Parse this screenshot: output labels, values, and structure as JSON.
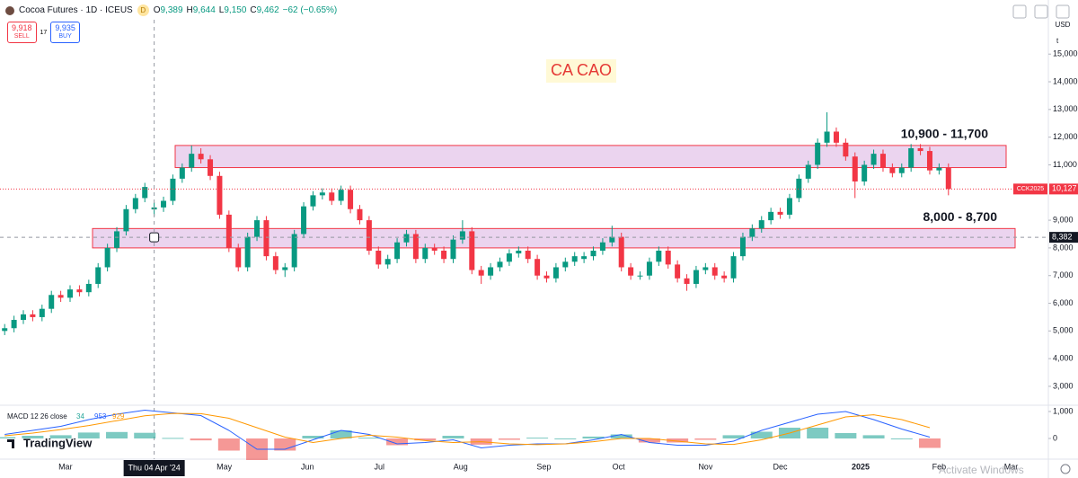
{
  "header": {
    "symbol": "Cocoa Futures · 1D · ICEUS",
    "badge": "D",
    "ohlc": [
      {
        "key": "O",
        "value": "9,389"
      },
      {
        "key": "H",
        "value": "9,644"
      },
      {
        "key": "L",
        "value": "9,150"
      },
      {
        "key": "C",
        "value": "9,462"
      }
    ],
    "change": "−62 (−0.65%)",
    "sell": {
      "price": "9,918",
      "label": "SELL"
    },
    "spread": "17",
    "buy": {
      "price": "9,935",
      "label": "BUY"
    },
    "currency": "USD",
    "scale_mode": "t"
  },
  "chart_data": [
    {
      "type": "candlestick",
      "title": "CA CAO",
      "open": [
        5000,
        5100,
        5400,
        5600,
        5500,
        5800,
        6300,
        6200,
        6500,
        6400,
        6700,
        7300,
        8000,
        8600,
        9400,
        9800,
        9389,
        9462,
        9700,
        10500,
        10900,
        11400,
        11200,
        10600,
        9200,
        8000,
        7300,
        8400,
        9000,
        7700,
        7200,
        7300,
        8500,
        9500,
        9900,
        10000,
        9700,
        10100,
        9400,
        9000,
        7900,
        7400,
        7600,
        8200,
        8500,
        7600,
        8000,
        7900,
        7600,
        8300,
        8600,
        7200,
        7000,
        7300,
        7500,
        7800,
        7900,
        7600,
        7000,
        6900,
        7300,
        7500,
        7600,
        7700,
        7900,
        8200,
        8400,
        7300,
        7000,
        7000,
        7500,
        7900,
        7400,
        6900,
        6700,
        7200,
        7300,
        7000,
        6900,
        7700,
        8400,
        8700,
        9000,
        9300,
        9200,
        9800,
        10500,
        11000,
        11800,
        12200,
        11800,
        11300,
        10400,
        11000,
        11400,
        10900,
        10700,
        10900,
        11600,
        11500,
        10800,
        10900
      ],
      "high": [
        5250,
        5550,
        5750,
        5750,
        5950,
        6450,
        6450,
        6650,
        6650,
        6850,
        7450,
        8150,
        8750,
        9550,
        9950,
        10350,
        9644,
        9850,
        10650,
        11050,
        11700,
        11600,
        11350,
        10750,
        9350,
        8150,
        8550,
        9150,
        9150,
        7850,
        7450,
        8650,
        9650,
        10050,
        10150,
        10150,
        10250,
        10250,
        9550,
        9150,
        8050,
        7750,
        8350,
        8650,
        8650,
        8150,
        8150,
        8050,
        8450,
        9000,
        8750,
        7350,
        7450,
        7650,
        7950,
        8050,
        8050,
        7750,
        7150,
        7450,
        7650,
        7850,
        7850,
        8050,
        8350,
        8800,
        8550,
        7450,
        7150,
        7650,
        8050,
        8050,
        7550,
        7050,
        7350,
        7450,
        7450,
        7150,
        7850,
        8550,
        8850,
        9150,
        9450,
        9450,
        9950,
        10650,
        11150,
        11950,
        12900,
        12350,
        11950,
        11450,
        11150,
        11550,
        11550,
        11050,
        11050,
        11750,
        11750,
        11650,
        11050,
        11050
      ],
      "low": [
        4850,
        4950,
        5250,
        5350,
        5350,
        5650,
        6050,
        6050,
        6250,
        6250,
        6550,
        7150,
        7850,
        8450,
        9250,
        9650,
        9150,
        9300,
        9550,
        10350,
        10750,
        11050,
        10450,
        9050,
        7850,
        7150,
        7150,
        8250,
        7550,
        7050,
        6950,
        7150,
        8350,
        9350,
        9750,
        9550,
        9550,
        9250,
        8850,
        7750,
        7250,
        7250,
        7450,
        8050,
        7450,
        7450,
        7750,
        7450,
        7450,
        8150,
        7050,
        6700,
        6850,
        7150,
        7350,
        7650,
        7450,
        6850,
        6750,
        6750,
        7150,
        7350,
        7450,
        7550,
        7750,
        8050,
        7150,
        6850,
        6850,
        6850,
        7350,
        7250,
        6750,
        6450,
        6550,
        7050,
        6850,
        6750,
        6750,
        7550,
        8250,
        8550,
        8850,
        9050,
        9050,
        9650,
        10350,
        10850,
        11650,
        11650,
        11150,
        9800,
        10250,
        10850,
        10750,
        10550,
        10550,
        10750,
        11350,
        10650,
        10650,
        9900
      ],
      "close": [
        5100,
        5400,
        5600,
        5500,
        5800,
        6300,
        6200,
        6500,
        6400,
        6700,
        7300,
        8000,
        8600,
        9400,
        9800,
        10200,
        9462,
        9700,
        10500,
        10900,
        11400,
        11200,
        10600,
        9200,
        8000,
        7300,
        8400,
        9000,
        7700,
        7200,
        7300,
        8500,
        9500,
        9900,
        10000,
        9700,
        10100,
        9400,
        9000,
        7900,
        7400,
        7600,
        8200,
        8500,
        7600,
        8000,
        7900,
        7600,
        8300,
        8600,
        7200,
        7000,
        7300,
        7500,
        7800,
        7900,
        7600,
        7000,
        6900,
        7300,
        7500,
        7700,
        7700,
        7900,
        8200,
        8400,
        7300,
        7000,
        7000,
        7500,
        7900,
        7400,
        6900,
        6700,
        7200,
        7300,
        7000,
        6900,
        7700,
        8400,
        8700,
        9000,
        9300,
        9200,
        9800,
        10500,
        11000,
        11800,
        12200,
        11800,
        11300,
        10400,
        11000,
        11400,
        10900,
        10700,
        10900,
        11600,
        11500,
        10800,
        10900,
        10127
      ],
      "up_color": "#089981",
      "down_color": "#f23645",
      "xlim": [
        -0.5,
        111.5
      ],
      "ylim": [
        2350,
        16240
      ],
      "xticks": [
        {
          "value": 6.5,
          "label": "Mar"
        },
        {
          "value": 23.5,
          "label": "May"
        },
        {
          "value": 32.4,
          "label": "Jun"
        },
        {
          "value": 40.1,
          "label": "Jul"
        },
        {
          "value": 48.8,
          "label": "Aug"
        },
        {
          "value": 57.7,
          "label": "Sep"
        },
        {
          "value": 65.7,
          "label": "Oct"
        },
        {
          "value": 75,
          "label": "Nov"
        },
        {
          "value": 83,
          "label": "Dec"
        },
        {
          "value": 91.6,
          "label": "2025"
        },
        {
          "value": 100,
          "label": "Feb"
        },
        {
          "value": 107.7,
          "label": "Mar"
        }
      ],
      "yticks": [
        {
          "value": 3000,
          "label": "3,000"
        },
        {
          "value": 4000,
          "label": "4,000"
        },
        {
          "value": 5000,
          "label": "5,000"
        },
        {
          "value": 6000,
          "label": "6,000"
        },
        {
          "value": 7000,
          "label": "7,000"
        },
        {
          "value": 8000,
          "label": "8,000"
        },
        {
          "value": 9000,
          "label": "9,000"
        },
        {
          "value": 11000,
          "label": "11,000"
        },
        {
          "value": 12000,
          "label": "12,000"
        },
        {
          "value": 13000,
          "label": "13,000"
        },
        {
          "value": 14000,
          "label": "14,000"
        },
        {
          "value": 15000,
          "label": "15,000"
        }
      ],
      "zones": [
        {
          "low": 10900,
          "high": 11700,
          "label": "10,900 - 11,700"
        },
        {
          "low": 8000,
          "high": 8700,
          "label": "8,000 - 8,700"
        }
      ],
      "last_price": {
        "name": "CCK2025",
        "value": 10127,
        "label": "10,127"
      },
      "crosshair": {
        "x": 16,
        "x_label": "Thu 04 Apr '24",
        "y": 8382,
        "y_label": "8,382"
      }
    },
    {
      "type": "macd",
      "title": "MACD 12 26 close",
      "x": [
        0,
        3,
        6,
        9,
        12,
        15,
        18,
        21,
        24,
        27,
        30,
        33,
        36,
        39,
        42,
        45,
        48,
        51,
        54,
        57,
        60,
        63,
        66,
        69,
        72,
        75,
        78,
        81,
        84,
        87,
        90,
        93,
        96,
        99
      ],
      "xlim": [
        -0.5,
        111.5
      ],
      "ylim": [
        -800,
        1200
      ],
      "yticks": [
        0,
        {
          "value": 1000,
          "label": "1,000"
        }
      ],
      "series": [
        {
          "kind": "histogram",
          "color": "#26a69a",
          "value_label": "34",
          "values": [
            50,
            100,
            120,
            220,
            240,
            210,
            20,
            -70,
            -450,
            -800,
            -450,
            100,
            300,
            30,
            -250,
            -70,
            100,
            -230,
            -50,
            30,
            0,
            70,
            150,
            -150,
            -150,
            -50,
            120,
            250,
            400,
            400,
            200,
            120,
            0,
            -350
          ]
        },
        {
          "kind": "line",
          "color": "#2962ff",
          "value_label": "953",
          "values": [
            150,
            300,
            450,
            700,
            900,
            1050,
            950,
            850,
            300,
            -400,
            -400,
            -50,
            300,
            150,
            -200,
            -150,
            -50,
            -350,
            -250,
            -200,
            -200,
            -50,
            150,
            -150,
            -250,
            -250,
            -100,
            300,
            600,
            900,
            1000,
            700,
            350,
            50
          ]
        },
        {
          "kind": "line",
          "color": "#ff9800",
          "value_label": "929",
          "values": [
            100,
            200,
            330,
            480,
            660,
            840,
            930,
            920,
            750,
            400,
            50,
            -150,
            0,
            120,
            50,
            -80,
            -150,
            -120,
            -200,
            -230,
            -200,
            -120,
            0,
            0,
            -100,
            -200,
            -220,
            -50,
            200,
            500,
            800,
            880,
            700,
            400
          ]
        }
      ]
    }
  ],
  "footer": {
    "brand": "TradingView",
    "watermark": "Activate Windows"
  }
}
